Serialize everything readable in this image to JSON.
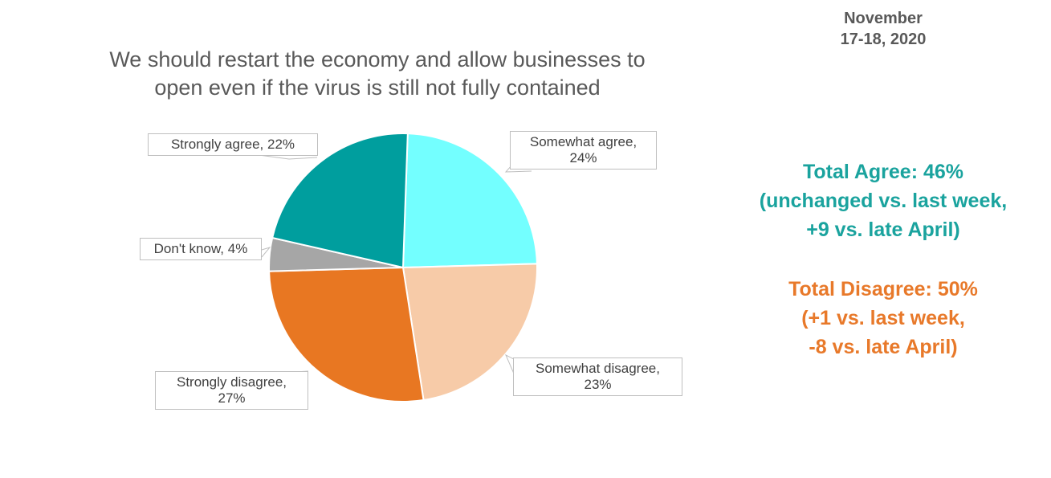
{
  "date": {
    "line1": "November",
    "line2": "17-18, 2020"
  },
  "title": {
    "line1": "We should restart the economy and allow businesses to",
    "line2": "open even if the virus is still not fully contained"
  },
  "chart_data": {
    "type": "pie",
    "start_angle_deg": 2,
    "slices": [
      {
        "label": "Somewhat agree",
        "value": 24,
        "color": "#73ffff"
      },
      {
        "label": "Somewhat disagree",
        "value": 23,
        "color": "#f7cba8"
      },
      {
        "label": "Strongly disagree",
        "value": 27,
        "color": "#e87722"
      },
      {
        "label": "Don't know",
        "value": 4,
        "color": "#a6a6a6"
      },
      {
        "label": "Strongly agree",
        "value": 22,
        "color": "#009e9e"
      }
    ],
    "data_labels": {
      "somewhat_agree": {
        "name": "Somewhat agree,",
        "pct": "24%"
      },
      "somewhat_disagree": {
        "name": "Somewhat disagree,",
        "pct": "23%"
      },
      "strongly_disagree": {
        "name": "Strongly disagree,",
        "pct": "27%"
      },
      "dont_know": {
        "name": "Don't know,",
        "pct": "4%"
      },
      "strongly_agree": {
        "name": "Strongly agree,",
        "pct": "22%"
      }
    }
  },
  "summary": {
    "agree": {
      "line1": "Total Agree: 46%",
      "line2": "(unchanged vs. last week,",
      "line3": "+9 vs. late April)",
      "color": "#1aa39e"
    },
    "disagree": {
      "line1": "Total Disagree: 50%",
      "line2": "(+1 vs. last week,",
      "line3": "-8 vs. late April)",
      "color": "#e8792a"
    }
  }
}
